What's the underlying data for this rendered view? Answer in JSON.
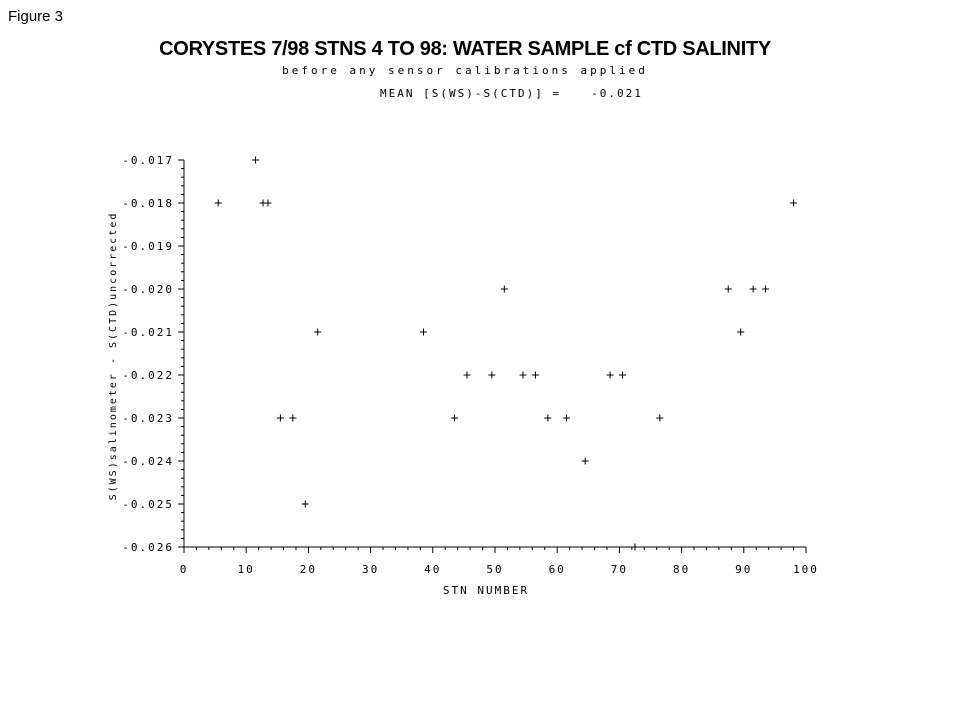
{
  "figure_label": "Figure 3",
  "mean_label": "MEAN [S(WS)-S(CTD)] =",
  "mean_value": "-0.021",
  "chart_data": {
    "type": "scatter",
    "title": "CORYSTES 7/98 STNS 4 TO 98: WATER SAMPLE cf CTD SALINITY",
    "subtitle": "before any sensor calibrations applied",
    "xlabel": "STN NUMBER",
    "ylabel": "S(WS)salinometer - S(CTD)uncorrected",
    "xlim": [
      0,
      100
    ],
    "ylim": [
      -0.026,
      -0.017
    ],
    "xticks": [
      "0",
      "10",
      "20",
      "30",
      "40",
      "50",
      "60",
      "70",
      "80",
      "90",
      "100"
    ],
    "yticks": [
      "-0.017",
      "-0.018",
      "-0.019",
      "-0.020",
      "-0.021",
      "-0.022",
      "-0.023",
      "-0.024",
      "-0.025",
      "-0.026"
    ],
    "marker": "+",
    "grid": false,
    "points": [
      {
        "x": 5.5,
        "y": -0.018
      },
      {
        "x": 11.5,
        "y": -0.017
      },
      {
        "x": 12.7,
        "y": -0.018
      },
      {
        "x": 13.5,
        "y": -0.018
      },
      {
        "x": 15.5,
        "y": -0.023
      },
      {
        "x": 17.5,
        "y": -0.023
      },
      {
        "x": 19.5,
        "y": -0.025
      },
      {
        "x": 21.5,
        "y": -0.021
      },
      {
        "x": 38.5,
        "y": -0.021
      },
      {
        "x": 43.5,
        "y": -0.023
      },
      {
        "x": 45.5,
        "y": -0.022
      },
      {
        "x": 49.5,
        "y": -0.022
      },
      {
        "x": 51.5,
        "y": -0.02
      },
      {
        "x": 54.5,
        "y": -0.022
      },
      {
        "x": 56.5,
        "y": -0.022
      },
      {
        "x": 58.5,
        "y": -0.023
      },
      {
        "x": 61.5,
        "y": -0.023
      },
      {
        "x": 64.5,
        "y": -0.024
      },
      {
        "x": 68.5,
        "y": -0.022
      },
      {
        "x": 70.5,
        "y": -0.022
      },
      {
        "x": 72.5,
        "y": -0.026
      },
      {
        "x": 76.5,
        "y": -0.023
      },
      {
        "x": 87.5,
        "y": -0.02
      },
      {
        "x": 89.5,
        "y": -0.021
      },
      {
        "x": 91.5,
        "y": -0.02
      },
      {
        "x": 93.5,
        "y": -0.02
      },
      {
        "x": 98.0,
        "y": -0.018
      }
    ]
  }
}
